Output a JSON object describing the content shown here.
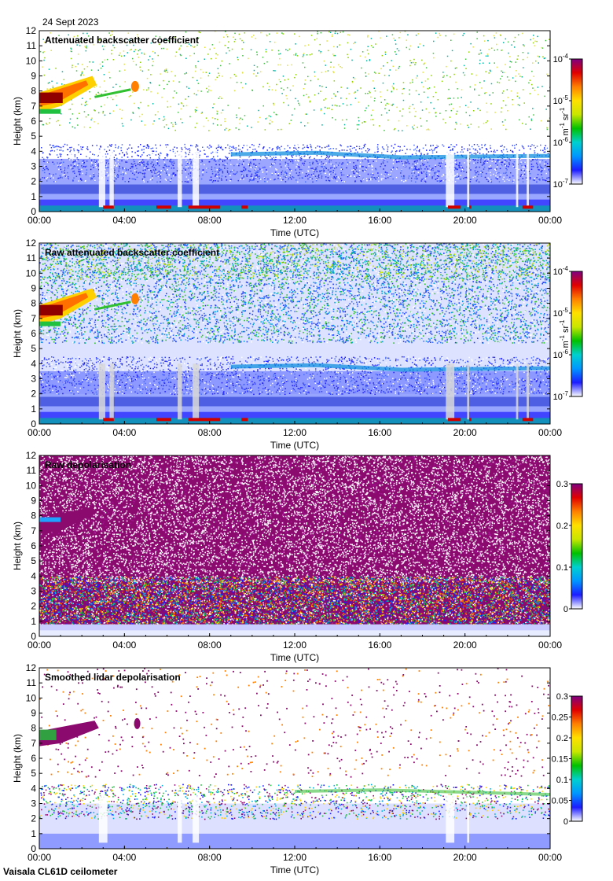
{
  "date": "24 Sept 2023",
  "instrument": "Vaisala CL61D ceilometer",
  "colors": {
    "colormap": [
      "#ffffff",
      "#1c1cff",
      "#0096ff",
      "#00d0d0",
      "#00c000",
      "#c8e600",
      "#ffe000",
      "#ff8000",
      "#e00000",
      "#800080"
    ]
  },
  "chart_data": [
    {
      "type": "heatmap",
      "title": "Attenuated backscatter coefficient",
      "xlabel": "Time (UTC)",
      "ylabel": "Height (km)",
      "x_ticks": [
        "00:00",
        "04:00",
        "08:00",
        "12:00",
        "16:00",
        "20:00",
        "00:00"
      ],
      "y_ticks": [
        "0",
        "1",
        "2",
        "3",
        "4",
        "5",
        "6",
        "7",
        "8",
        "9",
        "10",
        "11",
        "12"
      ],
      "xlim_hours": [
        0,
        24
      ],
      "ylim_km": [
        0,
        12
      ],
      "colorbar": {
        "scale": "log",
        "range": [
          1e-07,
          0.0001
        ],
        "ticks": [
          "10",
          "10",
          "10",
          "10"
        ],
        "tick_exponents": [
          "-7",
          "-6",
          "-5",
          "-4"
        ],
        "units": "m",
        "units_exp1": "-1",
        "units_mid": " sr",
        "units_exp2": "-1"
      }
    },
    {
      "type": "heatmap",
      "title": "Raw attenuated backscatter coefficient",
      "xlabel": "Time (UTC)",
      "ylabel": "Height (km)",
      "x_ticks": [
        "00:00",
        "04:00",
        "08:00",
        "12:00",
        "16:00",
        "20:00",
        "00:00"
      ],
      "y_ticks": [
        "0",
        "1",
        "2",
        "3",
        "4",
        "5",
        "6",
        "7",
        "8",
        "9",
        "10",
        "11",
        "12"
      ],
      "xlim_hours": [
        0,
        24
      ],
      "ylim_km": [
        0,
        12
      ],
      "colorbar": {
        "scale": "log",
        "range": [
          1e-07,
          0.0001
        ],
        "ticks": [
          "10",
          "10",
          "10",
          "10"
        ],
        "tick_exponents": [
          "-7",
          "-6",
          "-5",
          "-4"
        ],
        "units": "m",
        "units_exp1": "-1",
        "units_mid": " sr",
        "units_exp2": "-1"
      }
    },
    {
      "type": "heatmap",
      "title": "Raw depolarisation",
      "xlabel": "Time (UTC)",
      "ylabel": "Height (km)",
      "x_ticks": [
        "00:00",
        "04:00",
        "08:00",
        "12:00",
        "16:00",
        "20:00",
        "00:00"
      ],
      "y_ticks": [
        "0",
        "1",
        "2",
        "3",
        "4",
        "5",
        "6",
        "7",
        "8",
        "9",
        "10",
        "11",
        "12"
      ],
      "xlim_hours": [
        0,
        24
      ],
      "ylim_km": [
        0,
        12
      ],
      "colorbar": {
        "scale": "linear",
        "range": [
          0,
          0.3
        ],
        "ticks": [
          "0",
          "0.1",
          "0.2",
          "0.3"
        ],
        "tick_exponents": [
          "",
          "",
          "",
          ""
        ],
        "units": ""
      }
    },
    {
      "type": "heatmap",
      "title": "Smoothed lidar depolarisation",
      "xlabel": "Time (UTC)",
      "ylabel": "Height (km)",
      "x_ticks": [
        "00:00",
        "04:00",
        "08:00",
        "12:00",
        "16:00",
        "20:00",
        "00:00"
      ],
      "y_ticks": [
        "0",
        "1",
        "2",
        "3",
        "4",
        "5",
        "6",
        "7",
        "8",
        "9",
        "10",
        "11",
        "12"
      ],
      "xlim_hours": [
        0,
        24
      ],
      "ylim_km": [
        0,
        12
      ],
      "colorbar": {
        "scale": "linear",
        "range": [
          0,
          0.3
        ],
        "ticks": [
          "0",
          "0.05",
          "0.1",
          "0.15",
          "0.2",
          "0.25",
          "0.3"
        ],
        "tick_exponents": [
          "",
          "",
          "",
          "",
          "",
          "",
          ""
        ],
        "units": ""
      }
    }
  ]
}
